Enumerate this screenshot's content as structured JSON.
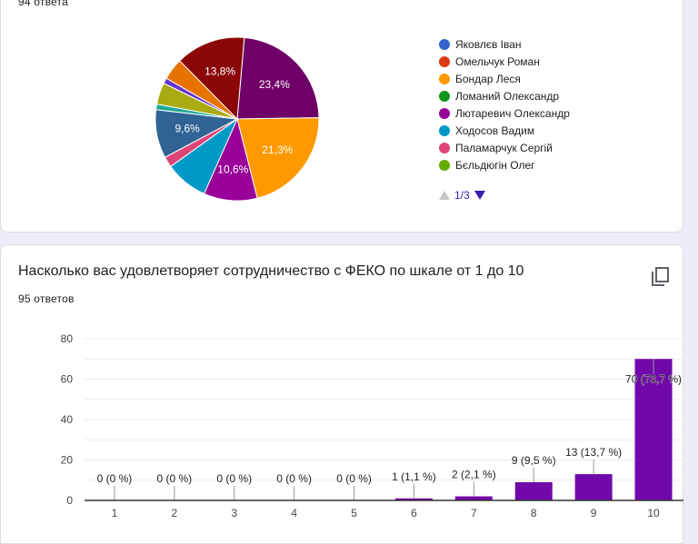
{
  "top_card": {
    "response_count": "94 ответа",
    "legend": [
      {
        "label": "Яковлєв Іван",
        "color": "#3366cc"
      },
      {
        "label": "Омельчук Роман",
        "color": "#dc3912"
      },
      {
        "label": "Бондар Леся",
        "color": "#ff9900"
      },
      {
        "label": "Ломаний Олександр",
        "color": "#109618"
      },
      {
        "label": "Лютаревич Олександр",
        "color": "#990099"
      },
      {
        "label": "Ходосов Вадим",
        "color": "#0099c6"
      },
      {
        "label": "Паламарчук Сергій",
        "color": "#dd4477"
      },
      {
        "label": "Бєльдюгін Олег",
        "color": "#66aa00"
      }
    ],
    "pager": {
      "label": "1/3",
      "prev_icon": "triangle-up-icon",
      "next_icon": "triangle-down-icon"
    }
  },
  "bottom_card": {
    "question": "Насколько вас удовлетворяет сотрудничество с ФЕКО по шкале от 1 до 10",
    "response_count": "95 ответов",
    "copy_icon": "copy-icon"
  },
  "chart_data": [
    {
      "type": "pie",
      "title": "",
      "slices": [
        {
          "label": "",
          "value": 23.4,
          "color": "#6f0067",
          "display": "23,4%"
        },
        {
          "label": "Бондар Леся",
          "value": 21.3,
          "color": "#ff9900",
          "display": "21,3%"
        },
        {
          "label": "Лютаревич Олександр",
          "value": 10.6,
          "color": "#990099",
          "display": "10,6%"
        },
        {
          "label": "Ходосов Вадим",
          "value": 8.5,
          "color": "#0099c6",
          "display": ""
        },
        {
          "label": "Паламарчук Сергій",
          "value": 2.1,
          "color": "#dd4477",
          "display": ""
        },
        {
          "label": "",
          "value": 9.6,
          "color": "#316395",
          "display": "9,6%"
        },
        {
          "label": "",
          "value": 1.1,
          "color": "#22aa99",
          "display": ""
        },
        {
          "label": "",
          "value": 4.3,
          "color": "#aaaa11",
          "display": ""
        },
        {
          "label": "",
          "value": 1.1,
          "color": "#6633cc",
          "display": ""
        },
        {
          "label": "",
          "value": 4.3,
          "color": "#e67300",
          "display": ""
        },
        {
          "label": "",
          "value": 13.8,
          "color": "#8b0707",
          "display": "13,8%"
        }
      ],
      "legend_position": "right",
      "legend_page": "1/3"
    },
    {
      "type": "bar",
      "title": "Насколько вас удовлетворяет сотрудничество с ФЕКО по шкале от 1 до 10",
      "categories": [
        "1",
        "2",
        "3",
        "4",
        "5",
        "6",
        "7",
        "8",
        "9",
        "10"
      ],
      "values": [
        0,
        0,
        0,
        0,
        0,
        1,
        2,
        9,
        13,
        70
      ],
      "data_labels": [
        "0 (0 %)",
        "0 (0 %)",
        "0 (0 %)",
        "0 (0 %)",
        "0 (0 %)",
        "1 (1,1 %)",
        "2 (2,1 %)",
        "9 (9,5 %)",
        "13 (13,7 %)",
        "70 (73,7 %)"
      ],
      "yticks": [
        0,
        20,
        40,
        60,
        80
      ],
      "ylim": [
        0,
        80
      ],
      "xlabel": "",
      "ylabel": "",
      "grid": true,
      "bar_color": "#7109aa"
    }
  ]
}
